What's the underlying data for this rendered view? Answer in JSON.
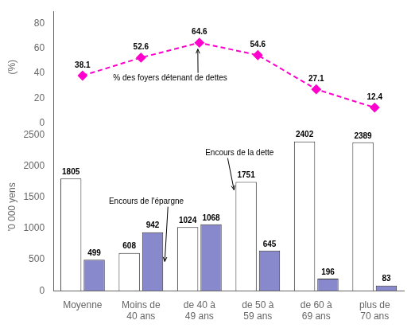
{
  "chart_data": {
    "type": "bar",
    "categories": [
      "Moyenne",
      "Moins de\n40 ans",
      "de 40 à\n49 ans",
      "de 50 à\n59 ans",
      "de 60 à\n69 ans",
      "plus de\n70 ans"
    ],
    "series": [
      {
        "values": [
          1805,
          608,
          1024,
          1751,
          2402,
          2389
        ],
        "color": "white"
      },
      {
        "values": [
          499,
          942,
          1068,
          645,
          196,
          83
        ],
        "color": "#8888cc"
      },
      {
        "type": "line",
        "values": [
          38.1,
          52.6,
          64.6,
          54.6,
          27.1,
          12.4
        ],
        "color": "#ff00cc",
        "axis": "y2",
        "line_style": "dashed",
        "marker": "diamond"
      }
    ],
    "ylabel": "'0 000 yens",
    "y2label": "(%)",
    "ylim": [
      0,
      2700
    ],
    "yticks": [
      0,
      500,
      1000,
      1500,
      2000,
      2500
    ],
    "y2lim": [
      0,
      90
    ],
    "y2ticks": [
      0,
      20,
      40,
      60,
      80
    ],
    "grid": false,
    "data_labels": true,
    "annotations": [
      "% des foyers détenant de dettes",
      "Encours de l'épargne",
      "Encours de la dette"
    ]
  }
}
